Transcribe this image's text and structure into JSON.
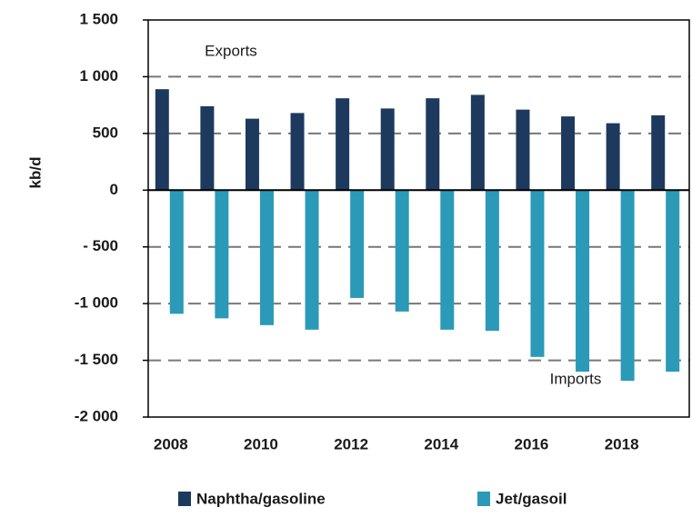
{
  "chart_data": {
    "type": "bar",
    "y_label": "kb/d",
    "annotations": [
      "Exports",
      "Imports"
    ],
    "categories": [
      "2008",
      null,
      "2010",
      null,
      "2012",
      null,
      "2014",
      null,
      "2016",
      null,
      "2018",
      null
    ],
    "series": [
      {
        "name": "Naphtha/gasoline",
        "color": "#1d3a5e",
        "values": [
          890,
          740,
          630,
          680,
          810,
          720,
          810,
          840,
          710,
          650,
          590,
          660
        ]
      },
      {
        "name": "Jet/gasoil",
        "color": "#2a9ab8",
        "values": [
          -1090,
          -1130,
          -1190,
          -1230,
          -950,
          -1070,
          -1230,
          -1240,
          -1470,
          -1600,
          -1680,
          -1600
        ]
      }
    ],
    "ylim": [
      -2000,
      1500
    ],
    "yticks": [
      {
        "value": -2000,
        "label": "-2 000"
      },
      {
        "value": -1500,
        "label": "-1 500"
      },
      {
        "value": -1000,
        "label": "-1 000"
      },
      {
        "value": -500,
        "label": "- 500"
      },
      0,
      500,
      {
        "value": 1000,
        "label": "1 000"
      },
      {
        "value": 1500,
        "label": "1 500"
      }
    ],
    "grid": true
  }
}
